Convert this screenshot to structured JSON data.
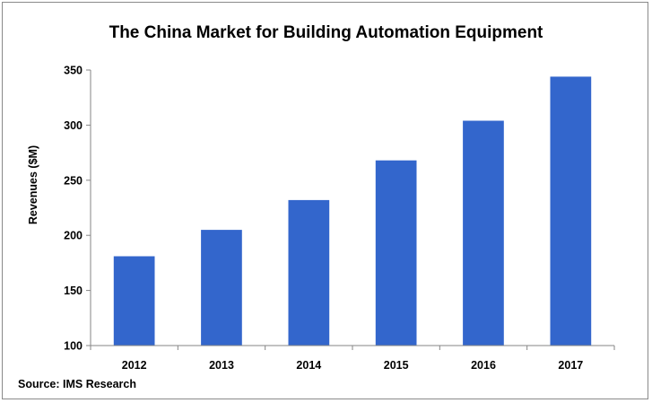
{
  "chart_data": {
    "type": "bar",
    "title": "The China Market for Building Automation Equipment",
    "xlabel": "",
    "ylabel": "Revenues ($M)",
    "categories": [
      "2012",
      "2013",
      "2014",
      "2015",
      "2016",
      "2017"
    ],
    "values": [
      181,
      205,
      232,
      268,
      304,
      344
    ],
    "ylim": [
      100,
      350
    ],
    "yticks": [
      100,
      150,
      200,
      250,
      300,
      350
    ],
    "grid": false,
    "legend": "none",
    "bar_color": "#3366CC",
    "source": "Source: IMS Research"
  }
}
